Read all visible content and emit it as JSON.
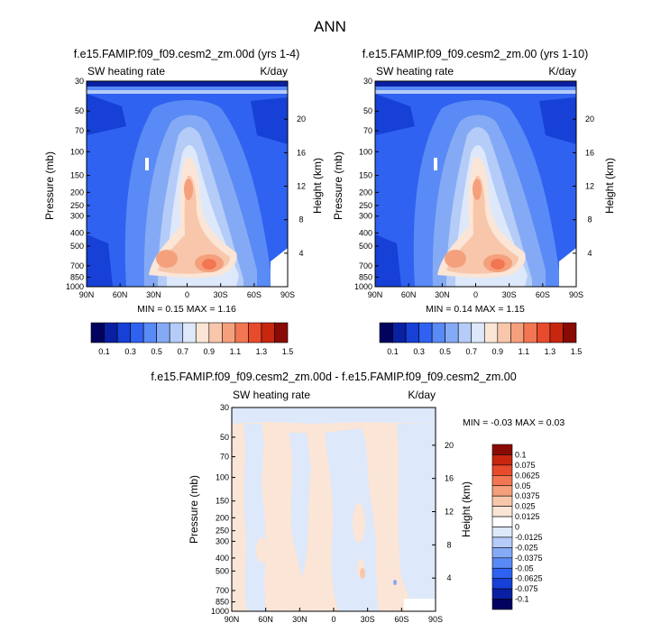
{
  "page_title": "ANN",
  "chart_data": [
    {
      "type": "heatmap",
      "title": "f.e15.FAMIP.f09_f09.cesm2_zm.00d (yrs 1-4)",
      "left_label": "SW heating rate",
      "right_label": "K/day",
      "ylabel": "Pressure (mb)",
      "y2label": "Height (km)",
      "x_ticks": [
        "90N",
        "60N",
        "30N",
        "0",
        "30S",
        "60S",
        "90S"
      ],
      "y_ticks": [
        "30",
        "50",
        "70",
        "100",
        "150",
        "200",
        "250",
        "300",
        "400",
        "500",
        "700",
        "850",
        "1000"
      ],
      "y2_ticks": [
        "20",
        "16",
        "12",
        "8",
        "4"
      ],
      "stats": "MIN =   0.15  MAX =   1.16",
      "colorbar": {
        "labels": [
          "0.1",
          "0.3",
          "0.5",
          "0.7",
          "0.9",
          "1.1",
          "1.3",
          "1.5"
        ],
        "colors": [
          "#02035f",
          "#0a20a3",
          "#1640d6",
          "#2f62f0",
          "#5a8af5",
          "#85aaf5",
          "#b4ccf7",
          "#dde8fa",
          "#fbe5d6",
          "#f8c7ab",
          "#f5a07c",
          "#f27652",
          "#e84a2c",
          "#c8260f",
          "#8a0b05"
        ]
      }
    },
    {
      "type": "heatmap",
      "title": "f.e15.FAMIP.f09_f09.cesm2_zm.00 (yrs 1-10)",
      "left_label": "SW heating rate",
      "right_label": "K/day",
      "ylabel": "Pressure (mb)",
      "y2label": "Height (km)",
      "x_ticks": [
        "90N",
        "60N",
        "30N",
        "0",
        "30S",
        "60S",
        "90S"
      ],
      "y_ticks": [
        "30",
        "50",
        "70",
        "100",
        "150",
        "200",
        "250",
        "300",
        "400",
        "500",
        "700",
        "850",
        "1000"
      ],
      "y2_ticks": [
        "20",
        "16",
        "12",
        "8",
        "4"
      ],
      "stats": "MIN =   0.14  MAX =   1.15",
      "colorbar": {
        "labels": [
          "0.1",
          "0.3",
          "0.5",
          "0.7",
          "0.9",
          "1.1",
          "1.3",
          "1.5"
        ],
        "colors": [
          "#02035f",
          "#0a20a3",
          "#1640d6",
          "#2f62f0",
          "#5a8af5",
          "#85aaf5",
          "#b4ccf7",
          "#dde8fa",
          "#fbe5d6",
          "#f8c7ab",
          "#f5a07c",
          "#f27652",
          "#e84a2c",
          "#c8260f",
          "#8a0b05"
        ]
      }
    },
    {
      "type": "heatmap",
      "title": "f.e15.FAMIP.f09_f09.cesm2_zm.00d - f.e15.FAMIP.f09_f09.cesm2_zm.00",
      "left_label": "SW heating rate",
      "right_label": "K/day",
      "ylabel": "Pressure (mb)",
      "y2label": "Height (km)",
      "x_ticks": [
        "90N",
        "60N",
        "30N",
        "0",
        "30S",
        "60S",
        "90S"
      ],
      "y_ticks": [
        "30",
        "50",
        "70",
        "100",
        "150",
        "200",
        "250",
        "300",
        "400",
        "500",
        "700",
        "850",
        "1000"
      ],
      "y2_ticks": [
        "20",
        "16",
        "12",
        "8",
        "4"
      ],
      "stats": "MIN =  -0.03  MAX =   0.03",
      "colorbar": {
        "labels": [
          "0.1",
          "0.075",
          "0.0625",
          "0.05",
          "0.0375",
          "0.025",
          "0.0125",
          "0",
          "-0.0125",
          "-0.025",
          "-0.0375",
          "-0.05",
          "-0.0625",
          "-0.075",
          "-0.1"
        ],
        "colors": [
          "#8a0b05",
          "#c8260f",
          "#e84a2c",
          "#f27652",
          "#f5a07c",
          "#f8c7ab",
          "#fbe5d6",
          "#ffffff",
          "#dde8fa",
          "#b4ccf7",
          "#85aaf5",
          "#5a8af5",
          "#2f62f0",
          "#1640d6",
          "#0a20a3",
          "#02035f"
        ]
      }
    }
  ]
}
